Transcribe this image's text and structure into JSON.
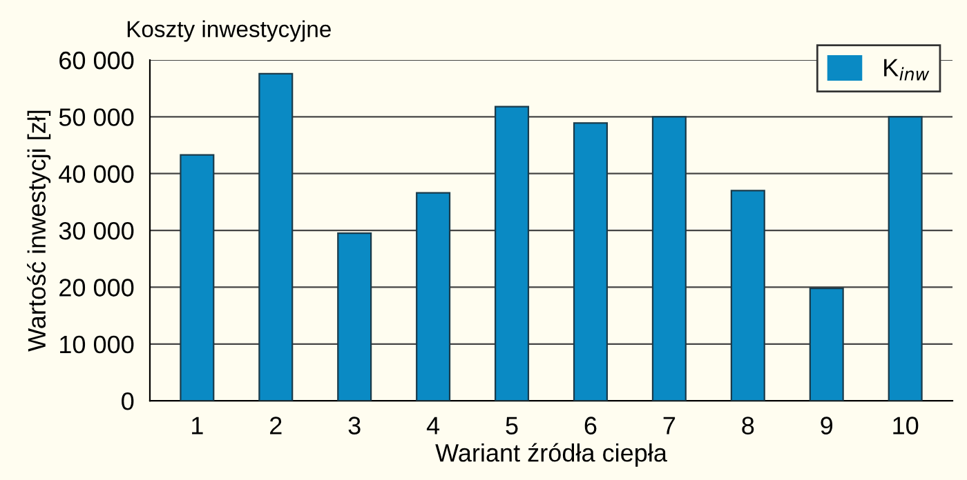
{
  "chart_data": {
    "type": "bar",
    "title": "Koszty inwestycyjne",
    "xlabel": "Wariant źródła ciepła",
    "ylabel": "Wartość inwestycji [zł]",
    "categories": [
      "1",
      "2",
      "3",
      "4",
      "5",
      "6",
      "7",
      "8",
      "9",
      "10"
    ],
    "series": [
      {
        "name": "K$_{inw}$",
        "color": "#0a8ac4",
        "values": [
          43300,
          57600,
          29500,
          36600,
          51800,
          48900,
          50000,
          37000,
          19800,
          50000
        ]
      }
    ],
    "ylim": [
      0,
      60000
    ],
    "yticks": [
      0,
      {
        "value": 10000,
        "label": "10 000"
      },
      {
        "value": 20000,
        "label": "20 000"
      },
      {
        "value": 30000,
        "label": "30 000"
      },
      {
        "value": 40000,
        "label": "40 000"
      },
      {
        "value": 50000,
        "label": "50 000"
      },
      {
        "value": 60000,
        "label": "60 000"
      }
    ],
    "grid": "y",
    "legend": "top right"
  }
}
